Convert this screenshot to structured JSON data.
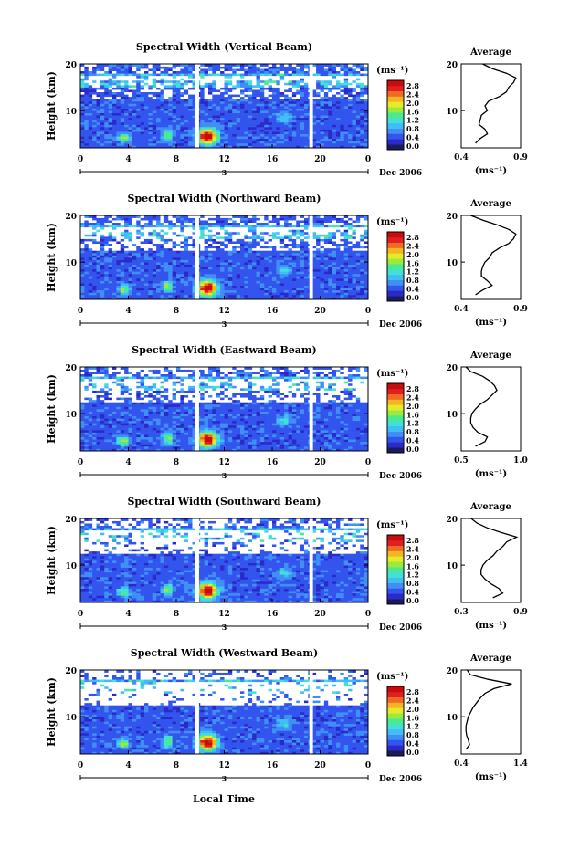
{
  "figure": {
    "xlabel": "Local Time",
    "date_label": "Dec 2006",
    "day_label": "3",
    "color_scale": [
      "#1a1a5e",
      "#2a2ac8",
      "#3355ee",
      "#3f8ff5",
      "#3fbff5",
      "#43e0d8",
      "#4aea8f",
      "#9eea3a",
      "#e6ea2a",
      "#f5b424",
      "#f06a24",
      "#e02020",
      "#c80b0b"
    ],
    "gap_color": "#ffffff"
  },
  "chart_data": [
    {
      "type": "heatmap",
      "title": "Spectral Width (Vertical Beam)",
      "ylabel": "Height (km)",
      "xlim": [
        0,
        24
      ],
      "ylim": [
        2,
        20
      ],
      "xticks": [
        "0",
        "4",
        "8",
        "12",
        "16",
        "20",
        "0"
      ],
      "yticks": [
        "10",
        "20"
      ],
      "data_gaps_hours": [
        [
          9.6,
          9.9
        ],
        [
          19.1,
          19.4
        ]
      ],
      "colorbar": {
        "unit": "(ms⁻¹)",
        "ticks": [
          "0.0",
          "0.4",
          "0.8",
          "1.2",
          "1.6",
          "2.0",
          "2.4",
          "2.8"
        ]
      },
      "average_profile": {
        "title": "Average",
        "xlabel": "(ms⁻¹)",
        "xticks": [
          "0.4",
          "0.9"
        ],
        "xlim": [
          0.4,
          0.9
        ],
        "yticks": [
          "10",
          "20"
        ],
        "height_km": [
          3,
          4,
          5,
          6,
          7,
          8,
          9,
          10,
          11,
          12,
          13,
          14,
          15,
          16,
          17,
          18,
          19,
          20
        ],
        "width": [
          0.52,
          0.56,
          0.62,
          0.6,
          0.55,
          0.56,
          0.57,
          0.62,
          0.6,
          0.63,
          0.72,
          0.78,
          0.8,
          0.84,
          0.86,
          0.78,
          0.66,
          0.58
        ]
      }
    },
    {
      "type": "heatmap",
      "title": "Spectral Width (Northward Beam)",
      "ylabel": "Height (km)",
      "xlim": [
        0,
        24
      ],
      "ylim": [
        2,
        20
      ],
      "xticks": [
        "0",
        "4",
        "8",
        "12",
        "16",
        "20",
        "0"
      ],
      "yticks": [
        "10",
        "20"
      ],
      "data_gaps_hours": [
        [
          9.6,
          9.9
        ],
        [
          19.1,
          19.4
        ]
      ],
      "colorbar": {
        "unit": "(ms⁻¹)",
        "ticks": [
          "0.0",
          "0.4",
          "0.8",
          "1.2",
          "1.6",
          "2.0",
          "2.4",
          "2.8"
        ]
      },
      "average_profile": {
        "title": "Average",
        "xlabel": "(ms⁻¹)",
        "xticks": [
          "0.4",
          "0.9"
        ],
        "xlim": [
          0.4,
          0.9
        ],
        "yticks": [
          "10",
          "20"
        ],
        "height_km": [
          3,
          4,
          5,
          6,
          7,
          8,
          9,
          10,
          11,
          12,
          13,
          14,
          15,
          16,
          17,
          18,
          19,
          20
        ],
        "width": [
          0.52,
          0.58,
          0.66,
          0.62,
          0.57,
          0.57,
          0.58,
          0.6,
          0.64,
          0.66,
          0.72,
          0.8,
          0.84,
          0.86,
          0.8,
          0.7,
          0.58,
          0.48
        ]
      }
    },
    {
      "type": "heatmap",
      "title": "Spectral Width (Eastward Beam)",
      "ylabel": "Height (km)",
      "xlim": [
        0,
        24
      ],
      "ylim": [
        2,
        20
      ],
      "xticks": [
        "0",
        "4",
        "8",
        "12",
        "16",
        "20",
        "0"
      ],
      "yticks": [
        "10",
        "20"
      ],
      "data_gaps_hours": [
        [
          9.6,
          9.9
        ],
        [
          19.1,
          19.4
        ]
      ],
      "colorbar": {
        "unit": "(ms⁻¹)",
        "ticks": [
          "0.0",
          "0.4",
          "0.8",
          "1.2",
          "1.6",
          "2.0",
          "2.4",
          "2.8"
        ]
      },
      "average_profile": {
        "title": "Average",
        "xlabel": "(ms⁻¹)",
        "xticks": [
          "0.5",
          "1.0"
        ],
        "xlim": [
          0.5,
          1.0
        ],
        "yticks": [
          "10",
          "20"
        ],
        "height_km": [
          3,
          4,
          5,
          6,
          7,
          8,
          9,
          10,
          11,
          12,
          13,
          14,
          15,
          16,
          17,
          18,
          19,
          20
        ],
        "width": [
          0.62,
          0.7,
          0.72,
          0.64,
          0.6,
          0.58,
          0.58,
          0.59,
          0.62,
          0.66,
          0.72,
          0.76,
          0.8,
          0.78,
          0.74,
          0.68,
          0.58,
          0.54
        ]
      }
    },
    {
      "type": "heatmap",
      "title": "Spectral Width (Southward Beam)",
      "ylabel": "Height (km)",
      "xlim": [
        0,
        24
      ],
      "ylim": [
        2,
        20
      ],
      "xticks": [
        "0",
        "4",
        "8",
        "12",
        "16",
        "20",
        "0"
      ],
      "yticks": [
        "10",
        "20"
      ],
      "data_gaps_hours": [
        [
          9.6,
          9.9
        ],
        [
          19.1,
          19.4
        ]
      ],
      "colorbar": {
        "unit": "(ms⁻¹)",
        "ticks": [
          "0.0",
          "0.4",
          "0.8",
          "1.2",
          "1.6",
          "2.0",
          "2.4",
          "2.8"
        ]
      },
      "average_profile": {
        "title": "Average",
        "xlabel": "(ms⁻¹)",
        "xticks": [
          "0.3",
          "0.9"
        ],
        "xlim": [
          0.3,
          0.9
        ],
        "yticks": [
          "10",
          "20"
        ],
        "height_km": [
          3,
          4,
          5,
          6,
          7,
          8,
          9,
          10,
          11,
          12,
          13,
          14,
          15,
          16,
          17,
          18,
          19,
          20
        ],
        "width": [
          0.62,
          0.72,
          0.68,
          0.6,
          0.54,
          0.5,
          0.5,
          0.52,
          0.56,
          0.62,
          0.66,
          0.72,
          0.76,
          0.86,
          0.7,
          0.56,
          0.46,
          0.4
        ]
      }
    },
    {
      "type": "heatmap",
      "title": "Spectral Width (Westward Beam)",
      "ylabel": "Height (km)",
      "xlim": [
        0,
        24
      ],
      "ylim": [
        2,
        20
      ],
      "xticks": [
        "0",
        "4",
        "8",
        "12",
        "16",
        "20",
        "0"
      ],
      "yticks": [
        "10",
        "20"
      ],
      "data_gaps_hours": [
        [
          9.6,
          9.9
        ],
        [
          19.1,
          19.4
        ]
      ],
      "colorbar": {
        "unit": "(ms⁻¹)",
        "ticks": [
          "0.0",
          "0.4",
          "0.8",
          "1.2",
          "1.6",
          "2.0",
          "2.4",
          "2.8"
        ]
      },
      "average_profile": {
        "title": "Average",
        "xlabel": "(ms⁻¹)",
        "xticks": [
          "0.4",
          "1.4"
        ],
        "xlim": [
          0.4,
          1.4
        ],
        "yticks": [
          "10",
          "20"
        ],
        "height_km": [
          3,
          4,
          5,
          6,
          7,
          8,
          9,
          10,
          11,
          12,
          13,
          14,
          15,
          16,
          17,
          18,
          19,
          20
        ],
        "width": [
          0.48,
          0.54,
          0.52,
          0.49,
          0.48,
          0.48,
          0.5,
          0.52,
          0.56,
          0.6,
          0.66,
          0.72,
          0.8,
          0.95,
          1.25,
          0.85,
          0.55,
          0.5
        ]
      }
    }
  ]
}
